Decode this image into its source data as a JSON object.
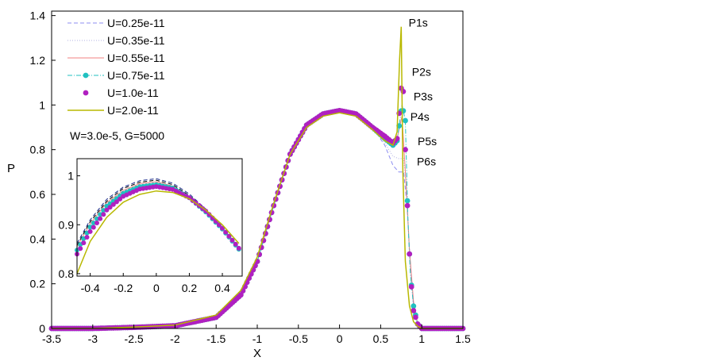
{
  "chart_data": {
    "type": "line",
    "xlabel": "X",
    "ylabel": "P",
    "xlim": [
      -3.5,
      1.5
    ],
    "ylim": [
      0,
      1.42
    ],
    "xticks": [
      "-3.5",
      "-3",
      "-2.5",
      "-2",
      "-1.5",
      "-1",
      "-0.5",
      "0",
      "0.5",
      "1",
      "1.5"
    ],
    "yticks": [
      "0",
      "0.2",
      "0.4",
      "0.6",
      "0.8",
      "1",
      "1.2",
      "1.4"
    ],
    "grid": false,
    "legend_position": "top-left",
    "annotation": "W=3.0e-5, G=5000",
    "series": [
      {
        "name": "U=0.25e-11",
        "style": "dashed",
        "color": "#8c8cf0",
        "x": [
          -3.5,
          -3.0,
          -2.5,
          -2.0,
          -1.5,
          -1.2,
          -1.0,
          -0.8,
          -0.6,
          -0.4,
          -0.2,
          0.0,
          0.2,
          0.4,
          0.55,
          0.65,
          0.72,
          0.78,
          0.82,
          0.86,
          0.9,
          0.95,
          1.0,
          1.5
        ],
        "y": [
          0.0,
          0.0,
          0.005,
          0.012,
          0.05,
          0.15,
          0.3,
          0.55,
          0.78,
          0.91,
          0.96,
          0.975,
          0.96,
          0.9,
          0.82,
          0.73,
          0.7,
          0.7,
          0.55,
          0.3,
          0.1,
          0.02,
          0.0,
          0.0
        ]
      },
      {
        "name": "U=0.35e-11",
        "style": "dotted",
        "color": "#b0b0e0",
        "x": [
          -3.5,
          -3.0,
          -2.5,
          -2.0,
          -1.5,
          -1.2,
          -1.0,
          -0.8,
          -0.6,
          -0.4,
          -0.2,
          0.0,
          0.2,
          0.4,
          0.55,
          0.65,
          0.72,
          0.78,
          0.82,
          0.85,
          0.9,
          0.95,
          1.0,
          1.5
        ],
        "y": [
          0.0,
          0.0,
          0.005,
          0.012,
          0.05,
          0.15,
          0.3,
          0.55,
          0.78,
          0.91,
          0.96,
          0.975,
          0.96,
          0.9,
          0.83,
          0.77,
          0.76,
          0.76,
          0.6,
          0.33,
          0.12,
          0.02,
          0.0,
          0.0
        ]
      },
      {
        "name": "U=0.55e-11",
        "style": "solid-thin",
        "color": "#f08080",
        "x": [
          -3.5,
          -3.0,
          -2.5,
          -2.0,
          -1.5,
          -1.2,
          -1.0,
          -0.8,
          -0.6,
          -0.4,
          -0.2,
          0.0,
          0.2,
          0.4,
          0.55,
          0.65,
          0.7,
          0.76,
          0.8,
          0.85,
          0.9,
          0.95,
          1.0,
          1.5
        ],
        "y": [
          0.0,
          0.0,
          0.005,
          0.012,
          0.05,
          0.15,
          0.3,
          0.55,
          0.78,
          0.91,
          0.96,
          0.975,
          0.96,
          0.9,
          0.84,
          0.82,
          0.85,
          0.95,
          0.7,
          0.35,
          0.12,
          0.02,
          0.0,
          0.0
        ]
      },
      {
        "name": "U=0.75e-11",
        "style": "dash-dot-marker",
        "color": "#20c0c0",
        "x": [
          -3.5,
          -3.0,
          -2.5,
          -2.0,
          -1.5,
          -1.2,
          -1.0,
          -0.8,
          -0.6,
          -0.4,
          -0.2,
          0.0,
          0.2,
          0.4,
          0.55,
          0.65,
          0.7,
          0.76,
          0.8,
          0.83,
          0.86,
          0.9,
          0.95,
          1.0,
          1.5
        ],
        "y": [
          0.0,
          0.0,
          0.005,
          0.012,
          0.05,
          0.15,
          0.3,
          0.55,
          0.78,
          0.91,
          0.96,
          0.975,
          0.96,
          0.9,
          0.85,
          0.82,
          0.84,
          1.0,
          0.93,
          0.5,
          0.25,
          0.1,
          0.02,
          0.0,
          0.0
        ]
      },
      {
        "name": "U=1.0e-11",
        "style": "marker",
        "color": "#b020c0",
        "x": [
          -3.5,
          -3.0,
          -2.5,
          -2.0,
          -1.5,
          -1.2,
          -1.0,
          -0.8,
          -0.6,
          -0.4,
          -0.2,
          0.0,
          0.2,
          0.4,
          0.55,
          0.65,
          0.7,
          0.76,
          0.78,
          0.8,
          0.83,
          0.86,
          0.9,
          0.95,
          1.0,
          1.5
        ],
        "y": [
          0.0,
          0.0,
          0.005,
          0.012,
          0.05,
          0.15,
          0.3,
          0.55,
          0.78,
          0.91,
          0.96,
          0.975,
          0.96,
          0.9,
          0.86,
          0.83,
          0.85,
          1.12,
          1.04,
          0.8,
          0.5,
          0.25,
          0.08,
          0.02,
          0.0,
          0.0
        ]
      },
      {
        "name": "U=2.0e-11",
        "style": "solid",
        "color": "#b8b800",
        "x": [
          -3.5,
          -3.0,
          -2.5,
          -2.0,
          -1.5,
          -1.2,
          -1.0,
          -0.8,
          -0.6,
          -0.4,
          -0.2,
          0.0,
          0.2,
          0.4,
          0.55,
          0.65,
          0.7,
          0.73,
          0.75,
          0.77,
          0.8,
          0.85,
          0.9,
          0.95,
          1.0,
          1.5
        ],
        "y": [
          0.0,
          0.0,
          0.006,
          0.015,
          0.06,
          0.17,
          0.32,
          0.56,
          0.78,
          0.9,
          0.95,
          0.965,
          0.95,
          0.89,
          0.84,
          0.82,
          0.88,
          1.2,
          1.35,
          0.7,
          0.3,
          0.1,
          0.03,
          0.01,
          0.0,
          0.0
        ]
      }
    ],
    "peak_labels": [
      {
        "text": "P1s",
        "x": 0.84,
        "y": 1.35
      },
      {
        "text": "P2s",
        "x": 0.88,
        "y": 1.13
      },
      {
        "text": "P3s",
        "x": 0.9,
        "y": 1.02
      },
      {
        "text": "P4s",
        "x": 0.86,
        "y": 0.93
      },
      {
        "text": "P5s",
        "x": 0.95,
        "y": 0.82
      },
      {
        "text": "P6s",
        "x": 0.94,
        "y": 0.73
      }
    ],
    "inset": {
      "type": "line",
      "xlim": [
        -0.48,
        0.52
      ],
      "ylim": [
        0.795,
        1.035
      ],
      "xticks": [
        "-0.4",
        "-0.2",
        "0",
        "0.2",
        "0.4"
      ],
      "yticks": [
        "0.8",
        "0.9",
        "1"
      ],
      "series": [
        {
          "name": "U=0.25e-11",
          "x": [
            -0.48,
            -0.4,
            -0.3,
            -0.2,
            -0.1,
            0.0,
            0.1,
            0.2,
            0.3,
            0.4,
            0.5
          ],
          "y": [
            0.862,
            0.91,
            0.952,
            0.977,
            0.99,
            0.994,
            0.985,
            0.963,
            0.932,
            0.895,
            0.852
          ]
        },
        {
          "name": "U=0.35e-11",
          "x": [
            -0.48,
            -0.4,
            -0.3,
            -0.2,
            -0.1,
            0.0,
            0.1,
            0.2,
            0.3,
            0.4,
            0.5
          ],
          "y": [
            0.858,
            0.906,
            0.948,
            0.974,
            0.987,
            0.991,
            0.982,
            0.96,
            0.93,
            0.893,
            0.851
          ]
        },
        {
          "name": "U=0.55e-11",
          "x": [
            -0.48,
            -0.4,
            -0.3,
            -0.2,
            -0.1,
            0.0,
            0.1,
            0.2,
            0.3,
            0.4,
            0.5
          ],
          "y": [
            0.855,
            0.902,
            0.945,
            0.97,
            0.984,
            0.988,
            0.979,
            0.958,
            0.928,
            0.892,
            0.85
          ]
        },
        {
          "name": "U=0.75e-11",
          "x": [
            -0.48,
            -0.4,
            -0.3,
            -0.2,
            -0.1,
            0.0,
            0.1,
            0.2,
            0.3,
            0.4,
            0.5
          ],
          "y": [
            0.848,
            0.895,
            0.938,
            0.964,
            0.978,
            0.982,
            0.975,
            0.955,
            0.926,
            0.891,
            0.85
          ]
        },
        {
          "name": "U=1.0e-11",
          "x": [
            -0.48,
            -0.4,
            -0.3,
            -0.2,
            -0.1,
            0.0,
            0.1,
            0.2,
            0.3,
            0.4,
            0.5
          ],
          "y": [
            0.84,
            0.886,
            0.93,
            0.958,
            0.973,
            0.978,
            0.972,
            0.955,
            0.928,
            0.893,
            0.852
          ]
        },
        {
          "name": "U=2.0e-11",
          "x": [
            -0.48,
            -0.4,
            -0.3,
            -0.2,
            -0.1,
            0.0,
            0.1,
            0.2,
            0.3,
            0.4,
            0.5
          ],
          "y": [
            0.8,
            0.866,
            0.915,
            0.946,
            0.962,
            0.969,
            0.966,
            0.953,
            0.93,
            0.9,
            0.862
          ]
        }
      ]
    }
  }
}
